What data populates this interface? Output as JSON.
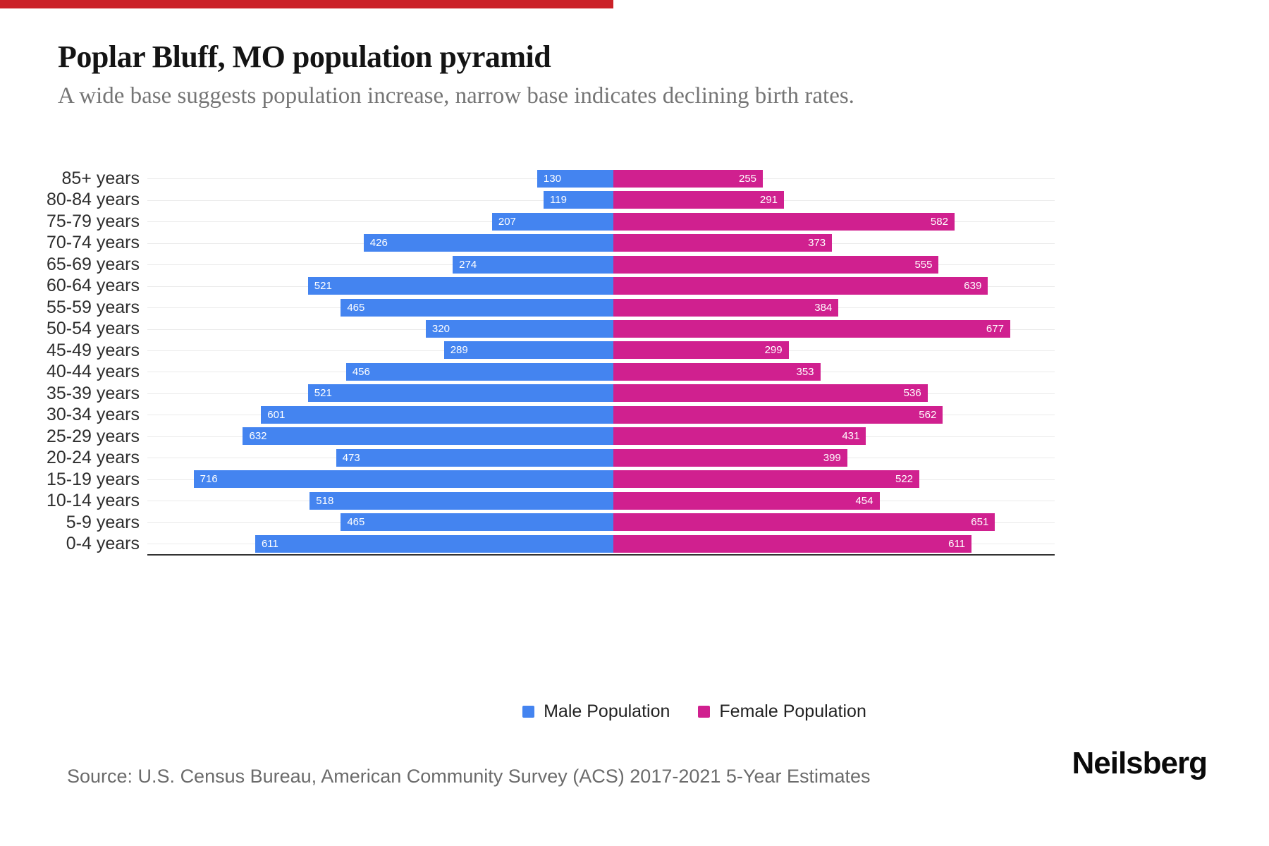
{
  "header": {
    "title": "Poplar Bluff, MO population pyramid",
    "subtitle": "A wide base suggests population increase, narrow base indicates declining birth rates."
  },
  "chart_data": {
    "type": "bar",
    "variant": "population_pyramid",
    "title": "Poplar Bluff, MO population pyramid",
    "categories": [
      "85+ years",
      "80-84 years",
      "75-79 years",
      "70-74 years",
      "65-69 years",
      "60-64 years",
      "55-59 years",
      "50-54 years",
      "45-49 years",
      "40-44 years",
      "35-39 years",
      "30-34 years",
      "25-29 years",
      "20-24 years",
      "15-19 years",
      "10-14 years",
      "5-9 years",
      "0-4 years"
    ],
    "series": [
      {
        "name": "Male Population",
        "side": "left",
        "color": "#4484f0",
        "values": [
          130,
          119,
          207,
          426,
          274,
          521,
          465,
          320,
          289,
          456,
          521,
          601,
          632,
          473,
          716,
          518,
          465,
          611
        ]
      },
      {
        "name": "Female Population",
        "side": "right",
        "color": "#d0208f",
        "values": [
          255,
          291,
          582,
          373,
          555,
          639,
          384,
          677,
          299,
          353,
          536,
          562,
          431,
          399,
          522,
          454,
          651,
          611
        ]
      }
    ],
    "value_labels": "inside-outer-end",
    "xlim": [
      0,
      795
    ],
    "grid": "horizontal-category-lines",
    "legend_position": "bottom-center"
  },
  "footer": {
    "source": "Source: U.S. Census Bureau, American Community Survey (ACS) 2017-2021 5-Year Estimates",
    "brand": "Neilsberg"
  },
  "accents": {
    "top_bar_color": "#cb2128",
    "male_color": "#4484f0",
    "female_color": "#d0208f",
    "gridline_color": "#ebebeb",
    "axis_line_color": "#333333"
  }
}
